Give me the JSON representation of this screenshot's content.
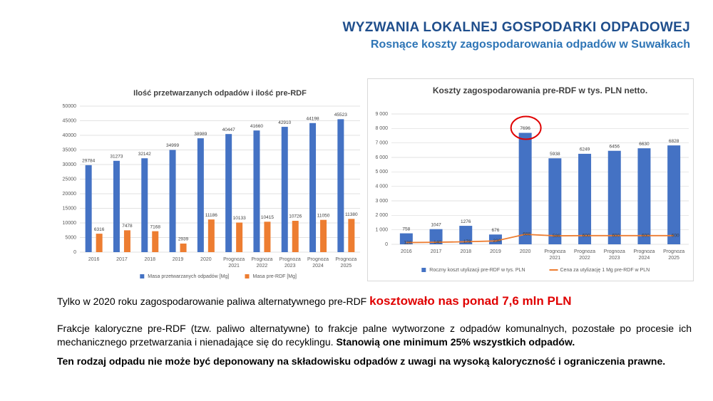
{
  "header": {
    "title": "WYZWANIA LOKALNEJ GOSPODARKI ODPADOWEJ",
    "subtitle": "Rosnące koszty zagospodarowania odpadów w Suwałkach"
  },
  "chart_data": [
    {
      "type": "bar",
      "title": "Ilość przetwarzanych odpadów i ilość pre-RDF",
      "categories": [
        "2016",
        "2017",
        "2018",
        "2019",
        "2020",
        "Prognoza 2021",
        "Prognoza 2022",
        "Prognoza 2023",
        "Prognoza 2024",
        "Prognoza 2025"
      ],
      "series": [
        {
          "name": "Masa przetwarzanych odpadów [Mg]",
          "color": "#4472c4",
          "type": "bar",
          "values": [
            29784,
            31273,
            32142,
            34999,
            38989,
            40447,
            41660,
            42910,
            44198,
            45523
          ]
        },
        {
          "name": "Masa pre-RDF [Mg]",
          "color": "#ed7d31",
          "type": "bar",
          "values": [
            6316,
            7478,
            7168,
            2939,
            11186,
            10133,
            10415,
            10726,
            11050,
            11380
          ]
        }
      ],
      "ylim": [
        0,
        50000
      ],
      "yticks": [
        0,
        5000,
        10000,
        15000,
        20000,
        25000,
        30000,
        35000,
        40000,
        45000,
        50000
      ],
      "grid": true,
      "legend": "bottom"
    },
    {
      "type": "combo",
      "title": "Koszty zagospodarowania pre-RDF w tys. PLN netto.",
      "categories": [
        "2016",
        "2017",
        "2018",
        "2019",
        "2020",
        "Prognoza 2021",
        "Prognoza 2022",
        "Prognoza 2023",
        "Prognoza 2024",
        "Prognoza 2025"
      ],
      "series": [
        {
          "name": "Roczny koszt utylizacji pre-RDF w tys. PLN",
          "color": "#4472c4",
          "type": "bar",
          "values": [
            758,
            1047,
            1276,
            676,
            7696,
            5938,
            6249,
            6456,
            6630,
            6828
          ]
        },
        {
          "name": "Cena za utylizację 1 Mg pre-RDF w PLN",
          "color": "#ed7d31",
          "type": "line",
          "values": [
            120,
            140,
            178,
            230,
            688,
            586,
            600,
            600,
            600,
            600
          ]
        }
      ],
      "ylim": [
        0,
        9000
      ],
      "yticks": [
        0,
        {
          "value": 1000,
          "label": "1 000"
        },
        {
          "value": 2000,
          "label": "2 000"
        },
        {
          "value": 3000,
          "label": "3 000"
        },
        {
          "value": 4000,
          "label": "4 000"
        },
        {
          "value": 5000,
          "label": "5 000"
        },
        {
          "value": 6000,
          "label": "6 000"
        },
        {
          "value": 7000,
          "label": "7 000"
        },
        {
          "value": 8000,
          "label": "8 000"
        },
        {
          "value": 9000,
          "label": "9 000"
        }
      ],
      "grid": true,
      "legend": "bottom",
      "highlight": "2020"
    }
  ],
  "text": {
    "p1": [
      "Tylko w 2020 roku zagospodarowanie paliwa alternatywnego pre-RDF",
      "kosztowało nas ponad 7,6 mln PLN"
    ],
    "p2": [
      "Frakcje kaloryczne pre-RDF (tzw. paliwo alternatywne) to frakcje palne wytworzone z odpadów komunalnych, pozostałe po procesie ich mechanicznego przetwarzania i nienadające się do recyklingu.",
      "Stanowią one minimum 25% wszystkich odpadów."
    ],
    "p3": "Ten rodzaj odpadu nie może być deponowany na składowisku odpadów z uwagi na wysoką kaloryczność i ograniczenia prawne."
  }
}
